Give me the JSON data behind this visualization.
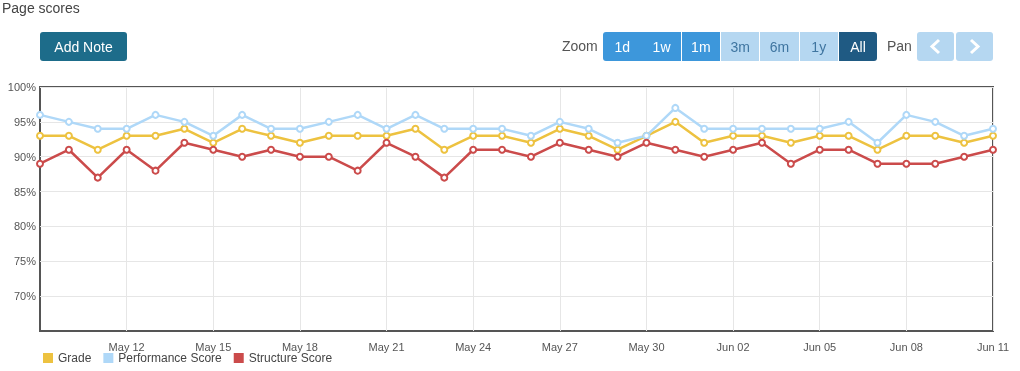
{
  "chart_data": {
    "type": "line",
    "title": "Page scores",
    "annotations": [
      "Add Note",
      "Zoom",
      "1d",
      "1w",
      "1m",
      "3m",
      "6m",
      "1y",
      "All",
      "Pan"
    ],
    "x": [
      "--05-09",
      "--05-10",
      "--05-11",
      "--05-12",
      "--05-13",
      "--05-14",
      "--05-15",
      "--05-16",
      "--05-17",
      "--05-18",
      "--05-19",
      "--05-20",
      "--05-21",
      "--05-22",
      "--05-23",
      "--05-24",
      "--05-25",
      "--05-26",
      "--05-27",
      "--05-28",
      "--05-29",
      "--05-30",
      "--05-31",
      "--06-01",
      "--06-02",
      "--06-03",
      "--06-04",
      "--06-05",
      "--06-06",
      "--06-07",
      "--06-08",
      "--06-09",
      "--06-10",
      "--06-11"
    ],
    "series": [
      {
        "name": "Grade",
        "color": "#edc240",
        "values": [
          93,
          93,
          91,
          93,
          93,
          94,
          92,
          94,
          93,
          92,
          93,
          93,
          93,
          94,
          91,
          93,
          93,
          92,
          94,
          93,
          91,
          93,
          95,
          92,
          93,
          93,
          92,
          93,
          93,
          91,
          93,
          93,
          92,
          93
        ]
      },
      {
        "name": "Performance Score",
        "color": "#afd8f8",
        "values": [
          96,
          95,
          94,
          94,
          96,
          95,
          93,
          96,
          94,
          94,
          95,
          96,
          94,
          96,
          94,
          94,
          94,
          93,
          95,
          94,
          92,
          93,
          97,
          94,
          94,
          94,
          94,
          94,
          95,
          92,
          96,
          95,
          93,
          94
        ]
      },
      {
        "name": "Structure Score",
        "color": "#cb4b4b",
        "values": [
          89,
          91,
          87,
          91,
          88,
          92,
          91,
          90,
          91,
          90,
          90,
          88,
          92,
          90,
          87,
          91,
          91,
          90,
          92,
          91,
          90,
          92,
          91,
          90,
          91,
          92,
          89,
          91,
          91,
          89,
          89,
          89,
          90,
          91
        ]
      }
    ],
    "xlim": [
      "--05-09",
      "--06-11"
    ],
    "xticks": [
      {
        "value": "--05-12",
        "label": "May 12"
      },
      {
        "value": "--05-15",
        "label": "May 15"
      },
      {
        "value": "--05-18",
        "label": "May 18"
      },
      {
        "value": "--05-21",
        "label": "May 21"
      },
      {
        "value": "--05-24",
        "label": "May 24"
      },
      {
        "value": "--05-27",
        "label": "May 27"
      },
      {
        "value": "--05-30",
        "label": "May 30"
      },
      {
        "value": "--06-02",
        "label": "Jun 02"
      },
      {
        "value": "--06-05",
        "label": "Jun 05"
      },
      {
        "value": "--06-08",
        "label": "Jun 08"
      },
      {
        "value": "--06-11",
        "label": "Jun 11"
      }
    ],
    "ylim": [
      65,
      100
    ],
    "yticks": [
      {
        "value": 70,
        "label": "70%"
      },
      {
        "value": 75,
        "label": "75%"
      },
      {
        "value": 80,
        "label": "80%"
      },
      {
        "value": 85,
        "label": "85%"
      },
      {
        "value": 90,
        "label": "90%"
      },
      {
        "value": 95,
        "label": "95%"
      },
      {
        "value": 100,
        "label": "100%"
      }
    ],
    "grid": true,
    "legend": "bottom left",
    "marker": "circle",
    "line_style": "solid"
  }
}
